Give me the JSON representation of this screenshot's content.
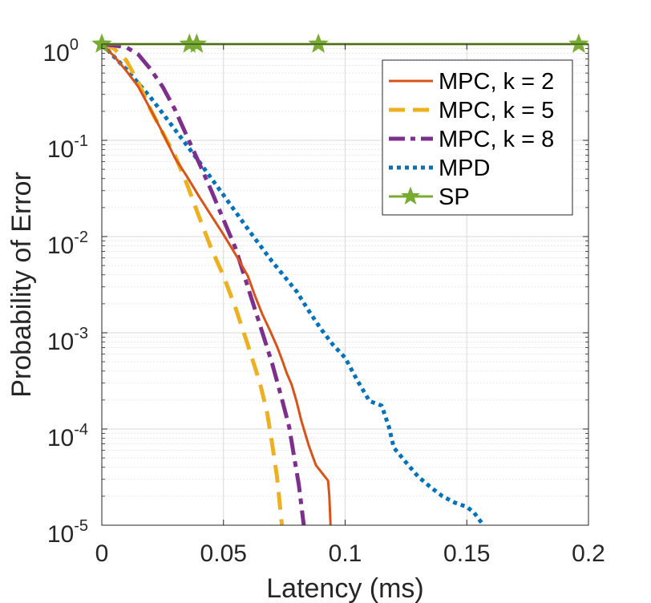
{
  "chart_data": {
    "type": "line",
    "title": "",
    "xlabel": "Latency (ms)",
    "ylabel": "Probability of Error",
    "xlim": [
      0,
      0.2
    ],
    "ylim": [
      1e-05,
      1
    ],
    "yscale": "log",
    "grid": true,
    "legend_position": "top-right",
    "x_ticks": [
      {
        "value": 0,
        "label": "0"
      },
      {
        "value": 0.05,
        "label": "0.05"
      },
      {
        "value": 0.1,
        "label": "0.1"
      },
      {
        "value": 0.15,
        "label": "0.15"
      },
      {
        "value": 0.2,
        "label": "0.2"
      }
    ],
    "y_ticks": [
      {
        "value": 1,
        "base": "10",
        "exp": "0"
      },
      {
        "value": 0.1,
        "base": "10",
        "exp": "-1"
      },
      {
        "value": 0.01,
        "base": "10",
        "exp": "-2"
      },
      {
        "value": 0.001,
        "base": "10",
        "exp": "-3"
      },
      {
        "value": 0.0001,
        "base": "10",
        "exp": "-4"
      },
      {
        "value": 1e-05,
        "base": "10",
        "exp": "-5"
      }
    ],
    "series": [
      {
        "name": "MPC, k = 2",
        "color": "#D95319",
        "style": "solid",
        "marker": "none",
        "x": [
          0.0,
          0.005,
          0.01,
          0.015,
          0.02,
          0.025,
          0.03,
          0.035,
          0.04,
          0.045,
          0.05,
          0.055,
          0.06,
          0.063,
          0.066,
          0.069,
          0.072,
          0.074,
          0.076,
          0.078,
          0.08,
          0.082,
          0.085,
          0.088,
          0.093,
          0.0935,
          0.094
        ],
        "y": [
          1.0,
          0.75,
          0.53,
          0.36,
          0.21,
          0.12,
          0.066,
          0.042,
          0.026,
          0.0165,
          0.0105,
          0.0065,
          0.0039,
          0.0024,
          0.00155,
          0.00107,
          0.00072,
          0.00053,
          0.00038,
          0.00029,
          0.000195,
          0.000122,
          6.8e-05,
          4.2e-05,
          2.9e-05,
          2e-05,
          1e-05
        ]
      },
      {
        "name": "MPC, k = 5",
        "color": "#EDB120",
        "style": "dashed",
        "marker": "none",
        "x": [
          0.0,
          0.005,
          0.01,
          0.015,
          0.02,
          0.025,
          0.03,
          0.035,
          0.04,
          0.045,
          0.05,
          0.055,
          0.06,
          0.065,
          0.068,
          0.07,
          0.072,
          0.073,
          0.074
        ],
        "y": [
          1.0,
          0.9,
          0.68,
          0.4,
          0.21,
          0.12,
          0.07,
          0.035,
          0.016,
          0.0075,
          0.0039,
          0.0018,
          0.00075,
          0.0003,
          0.000145,
          7e-05,
          3.2e-05,
          1.8e-05,
          1e-05
        ]
      },
      {
        "name": "MPC, k = 8",
        "color": "#7E2F8E",
        "style": "dashdot",
        "marker": "none",
        "x": [
          0.0,
          0.005,
          0.01,
          0.015,
          0.02,
          0.025,
          0.03,
          0.035,
          0.04,
          0.045,
          0.05,
          0.055,
          0.06,
          0.065,
          0.07,
          0.074,
          0.077,
          0.079,
          0.081,
          0.083
        ],
        "y": [
          1.0,
          0.97,
          0.93,
          0.78,
          0.55,
          0.36,
          0.21,
          0.11,
          0.058,
          0.03,
          0.015,
          0.0075,
          0.003,
          0.0012,
          0.00048,
          0.000205,
          0.000105,
          5.2e-05,
          2.6e-05,
          1e-05
        ]
      },
      {
        "name": "MPD",
        "color": "#0072BD",
        "style": "dotted",
        "marker": "none",
        "x": [
          0.0,
          0.01,
          0.02,
          0.03,
          0.04,
          0.05,
          0.06,
          0.07,
          0.08,
          0.085,
          0.09,
          0.095,
          0.1,
          0.105,
          0.11,
          0.115,
          0.118,
          0.12,
          0.125,
          0.13,
          0.135,
          0.14,
          0.145,
          0.15,
          0.153,
          0.155,
          0.157
        ],
        "y": [
          1.0,
          0.55,
          0.28,
          0.13,
          0.06,
          0.027,
          0.012,
          0.0055,
          0.0027,
          0.0017,
          0.0011,
          0.00075,
          0.00055,
          0.00032,
          0.000195,
          0.000175,
          0.000105,
          6.4e-05,
          4.5e-05,
          3.2e-05,
          2.5e-05,
          2e-05,
          1.72e-05,
          1.55e-05,
          1.35e-05,
          1.15e-05,
          1e-05
        ]
      },
      {
        "name": "SP",
        "color": "#77AC30",
        "style": "solid",
        "marker": "star",
        "x": [
          0.0,
          0.2
        ],
        "y": [
          1.0,
          1.0
        ],
        "marker_x": [
          0.0,
          0.036,
          0.039,
          0.089,
          0.196
        ]
      }
    ]
  }
}
